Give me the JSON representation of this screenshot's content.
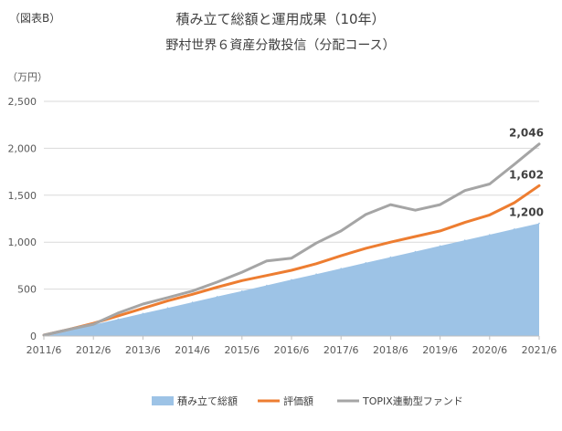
{
  "figure_label": "（図表B）",
  "chart_data": {
    "type": "area",
    "title": "積み立て総額と運用成果（10年）",
    "subtitle": "野村世界６資産分散投信（分配コース）",
    "ylabel": "（万円）",
    "ylim": [
      0,
      2500
    ],
    "yticks": [
      "0",
      "500",
      "1,000",
      "1,500",
      "2,000",
      "2,500"
    ],
    "xticks": [
      "2011/6",
      "2012/6",
      "2013/6",
      "2014/6",
      "2015/6",
      "2016/6",
      "2017/6",
      "2018/6",
      "2019/6",
      "2020/6",
      "2021/6"
    ],
    "x": [
      2011.5,
      2012.0,
      2012.5,
      2013.0,
      2013.5,
      2014.0,
      2014.5,
      2015.0,
      2015.5,
      2016.0,
      2016.5,
      2017.0,
      2017.5,
      2018.0,
      2018.5,
      2019.0,
      2019.5,
      2020.0,
      2020.5,
      2021.0,
      2021.5
    ],
    "series": [
      {
        "name": "積み立て総額",
        "kind": "area",
        "color": "#9dc3e6",
        "values": [
          10,
          65,
          120,
          180,
          240,
          300,
          360,
          420,
          480,
          540,
          600,
          660,
          720,
          780,
          840,
          900,
          960,
          1020,
          1080,
          1140,
          1200
        ]
      },
      {
        "name": "評価額",
        "kind": "line",
        "color": "#ed7d31",
        "values": [
          10,
          70,
          135,
          215,
          295,
          375,
          445,
          520,
          590,
          645,
          700,
          770,
          855,
          935,
          1000,
          1060,
          1120,
          1210,
          1290,
          1420,
          1602
        ]
      },
      {
        "name": "TOPIX連動型ファンド",
        "kind": "line",
        "color": "#a5a5a5",
        "values": [
          10,
          70,
          125,
          245,
          340,
          410,
          480,
          575,
          680,
          800,
          830,
          990,
          1120,
          1295,
          1400,
          1340,
          1400,
          1550,
          1620,
          1830,
          2046
        ]
      }
    ],
    "data_labels": [
      {
        "series": 0,
        "text": "1,200"
      },
      {
        "series": 1,
        "text": "1,602"
      },
      {
        "series": 2,
        "text": "2,046"
      }
    ],
    "grid": true,
    "legend_position": "bottom"
  }
}
